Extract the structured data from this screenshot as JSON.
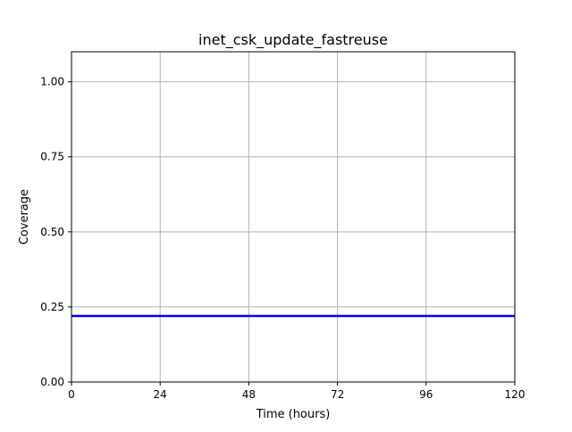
{
  "chart_data": {
    "type": "line",
    "title": "inet_csk_update_fastreuse",
    "xlabel": "Time (hours)",
    "ylabel": "Coverage",
    "xlim": [
      0,
      120
    ],
    "ylim": [
      0,
      1.1
    ],
    "x_ticks": [
      0,
      24,
      48,
      72,
      96,
      120
    ],
    "x_tick_labels": [
      "0",
      "24",
      "48",
      "72",
      "96",
      "120"
    ],
    "y_ticks": [
      0,
      0.25,
      0.5,
      0.75,
      1.0
    ],
    "y_tick_labels": [
      "0.00",
      "0.25",
      "0.50",
      "0.75",
      "1.00"
    ],
    "grid": true,
    "series": [
      {
        "color": "#0000ff",
        "x": [
          0,
          120
        ],
        "y": [
          0.22,
          0.22
        ]
      }
    ]
  }
}
